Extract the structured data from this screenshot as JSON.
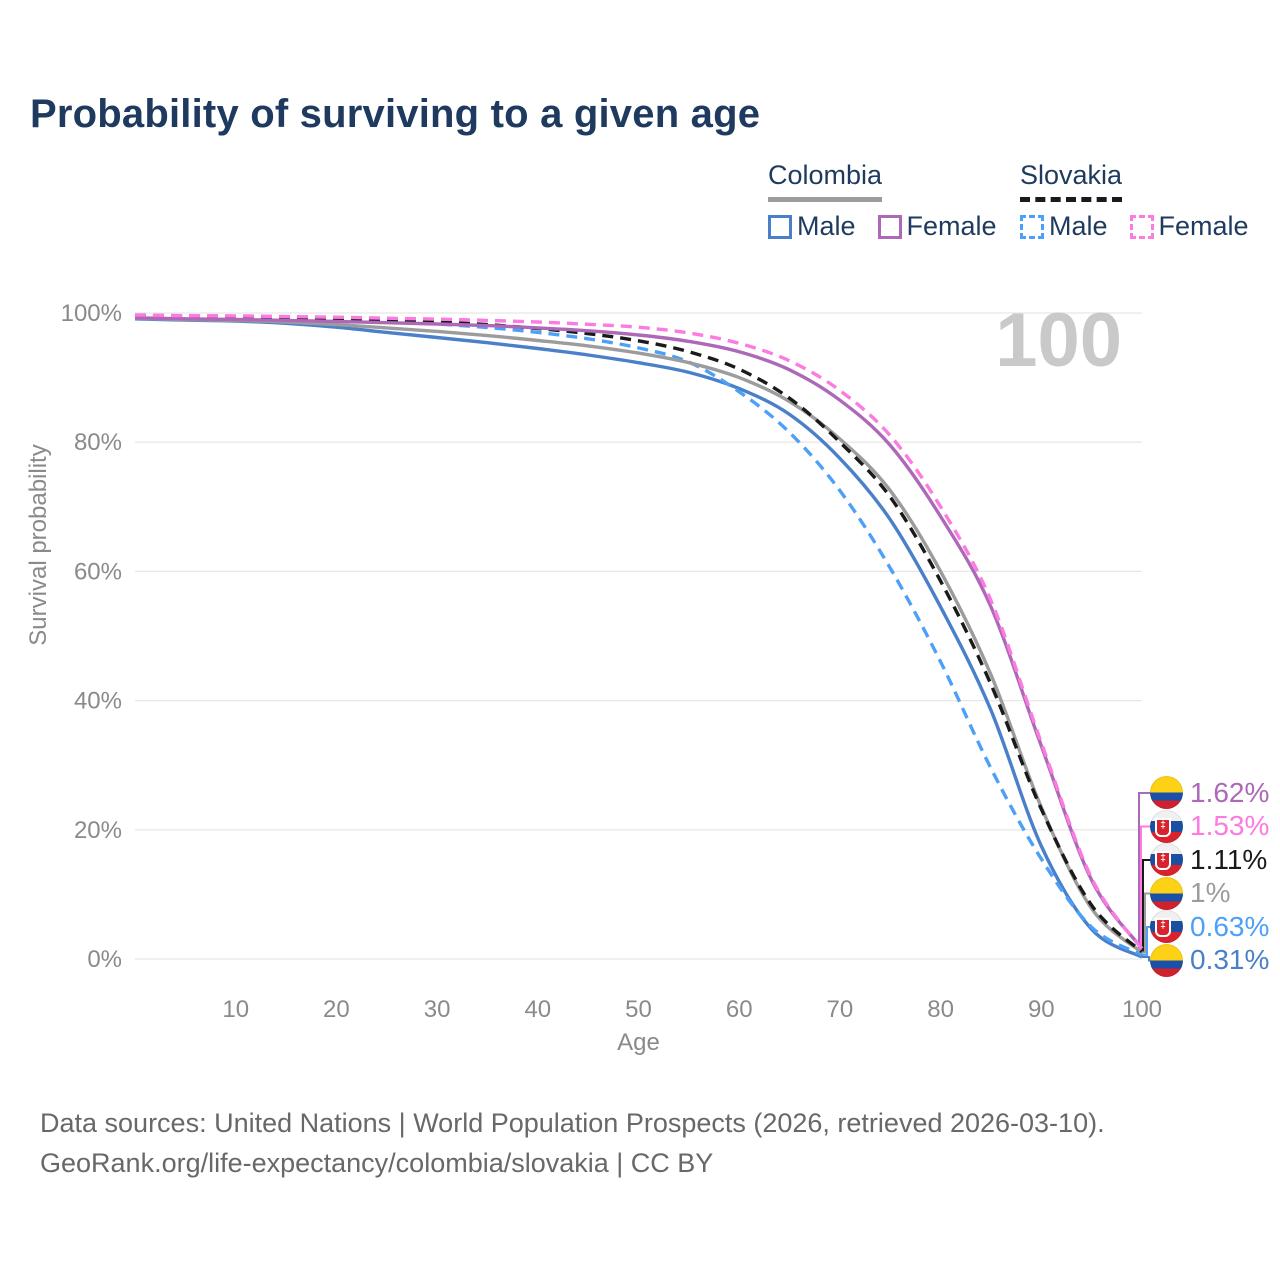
{
  "page": {
    "title": "Probability of surviving to a given age",
    "watermark_age": "100",
    "footer_line1": "Data sources: United Nations | World Population Prospects (2026, retrieved 2026-03-10).",
    "footer_line2": "GeoRank.org/life-expectancy/colombia/slovakia | CC BY"
  },
  "colors": {
    "title_navy": "#1e3a5f",
    "colombia_male": "#4a7fc9",
    "colombia_female": "#ad68b8",
    "colombia_total": "#9c9c9c",
    "slovakia_male": "#4da0f7",
    "slovakia_female": "#fb7be0",
    "slovakia_total": "#1a1a1a",
    "grid": "#e8e8e8",
    "axis_text": "#8a8a8a",
    "watermark": "#c9c9c9",
    "footer_text": "#686868"
  },
  "legend": {
    "groups": [
      {
        "label": "Colombia",
        "underline_style": "solid",
        "underline_color": "#9c9c9c",
        "items": [
          {
            "label": "Male",
            "color": "#4a7fc9",
            "dashed": false
          },
          {
            "label": "Female",
            "color": "#ad68b8",
            "dashed": false
          }
        ]
      },
      {
        "label": "Slovakia",
        "underline_style": "dashed",
        "underline_color": "#1a1a1a",
        "items": [
          {
            "label": "Male",
            "color": "#4da0f7",
            "dashed": true
          },
          {
            "label": "Female",
            "color": "#fb7be0",
            "dashed": true
          }
        ]
      }
    ]
  },
  "chart_data": {
    "type": "line",
    "title": "Probability of surviving to a given age",
    "xlabel": "Age",
    "ylabel": "Survival probability",
    "xlim": [
      0,
      100
    ],
    "ylim": [
      0,
      100
    ],
    "grid": "horizontal-only",
    "hover_age": "100",
    "x_ticks": [
      10,
      20,
      30,
      40,
      50,
      60,
      70,
      80,
      90,
      100
    ],
    "y_ticks": [
      "0%",
      "20%",
      "40%",
      "60%",
      "80%",
      "100%"
    ],
    "ages": [
      0,
      5,
      10,
      15,
      20,
      25,
      30,
      35,
      40,
      45,
      50,
      55,
      60,
      65,
      70,
      75,
      80,
      85,
      90,
      95,
      100
    ],
    "series": [
      {
        "id": "colombia-male",
        "name": "Colombia Male",
        "flag": "colombia",
        "color": "#4a7fc9",
        "dashed": false,
        "end_label": "0.31%",
        "values": [
          99.1,
          98.9,
          98.75,
          98.4,
          97.8,
          97.0,
          96.2,
          95.4,
          94.5,
          93.5,
          92.3,
          90.8,
          88.3,
          84.3,
          77.5,
          68.0,
          54.5,
          38.5,
          17.5,
          4.6,
          0.31
        ]
      },
      {
        "id": "slovakia-male",
        "name": "Slovakia Male",
        "flag": "slovakia",
        "color": "#4da0f7",
        "dashed": true,
        "end_label": "0.63%",
        "values": [
          99.5,
          99.4,
          99.35,
          99.2,
          99.0,
          98.7,
          98.3,
          97.75,
          97.0,
          96.0,
          94.6,
          92.4,
          87.8,
          81.5,
          72.5,
          60.5,
          46.0,
          29.5,
          15.5,
          4.9,
          0.63
        ]
      },
      {
        "id": "colombia-total",
        "name": "Colombia",
        "flag": "colombia",
        "color": "#9c9c9c",
        "dashed": false,
        "end_label": "1%",
        "values": [
          99.2,
          99.0,
          98.85,
          98.6,
          98.2,
          97.7,
          97.15,
          96.5,
          95.75,
          94.9,
          93.8,
          92.3,
          90.0,
          86.3,
          80.5,
          72.5,
          60.0,
          44.0,
          23.5,
          7.8,
          1.0
        ]
      },
      {
        "id": "slovakia-total",
        "name": "Slovakia",
        "flag": "slovakia",
        "color": "#1a1a1a",
        "dashed": true,
        "end_label": "1.11%",
        "values": [
          99.6,
          99.5,
          99.45,
          99.3,
          99.15,
          98.9,
          98.6,
          98.2,
          97.6,
          96.8,
          95.7,
          94.0,
          91.3,
          86.8,
          80.0,
          71.5,
          58.5,
          42.5,
          23.2,
          8.3,
          1.11
        ]
      },
      {
        "id": "colombia-female",
        "name": "Colombia Female",
        "flag": "colombia",
        "color": "#ad68b8",
        "dashed": false,
        "end_label": "1.62%",
        "values": [
          99.25,
          99.1,
          99.0,
          98.85,
          98.7,
          98.5,
          98.3,
          98.05,
          97.7,
          97.25,
          96.6,
          95.6,
          94.0,
          91.2,
          86.5,
          79.5,
          68.5,
          54.5,
          33.0,
          12.2,
          1.62
        ]
      },
      {
        "id": "slovakia-female",
        "name": "Slovakia Female",
        "flag": "slovakia",
        "color": "#fb7be0",
        "dashed": true,
        "end_label": "1.53%",
        "values": [
          99.7,
          99.6,
          99.55,
          99.45,
          99.35,
          99.2,
          99.05,
          98.85,
          98.6,
          98.25,
          97.8,
          96.9,
          95.3,
          92.6,
          88.0,
          81.0,
          70.0,
          55.5,
          33.5,
          12.5,
          1.53
        ]
      }
    ]
  }
}
